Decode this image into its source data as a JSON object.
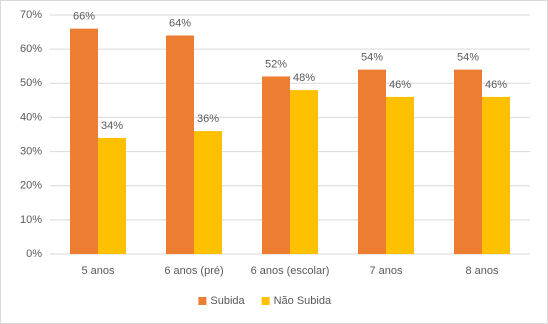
{
  "chart_data": {
    "type": "bar",
    "categories": [
      "5 anos",
      "6 anos (pré)",
      "6 anos (escolar)",
      "7 anos",
      "8 anos"
    ],
    "series": [
      {
        "name": "Subida",
        "color": "#ed7d31",
        "values": [
          66,
          64,
          52,
          54,
          54
        ],
        "value_labels": [
          "66%",
          "64%",
          "52%",
          "54%",
          "54%"
        ]
      },
      {
        "name": "Não Subida",
        "color": "#ffc000",
        "values": [
          34,
          36,
          48,
          46,
          46
        ],
        "value_labels": [
          "34%",
          "36%",
          "48%",
          "46%",
          "46%"
        ]
      }
    ],
    "ylim": [
      0,
      70
    ],
    "yticks": [
      {
        "value": 0,
        "label": "0%"
      },
      {
        "value": 10,
        "label": "10%"
      },
      {
        "value": 20,
        "label": "20%"
      },
      {
        "value": 30,
        "label": "30%"
      },
      {
        "value": 40,
        "label": "40%"
      },
      {
        "value": 50,
        "label": "50%"
      },
      {
        "value": 60,
        "label": "60%"
      },
      {
        "value": 70,
        "label": "70%"
      }
    ],
    "grid": true,
    "legend": "bottom"
  }
}
